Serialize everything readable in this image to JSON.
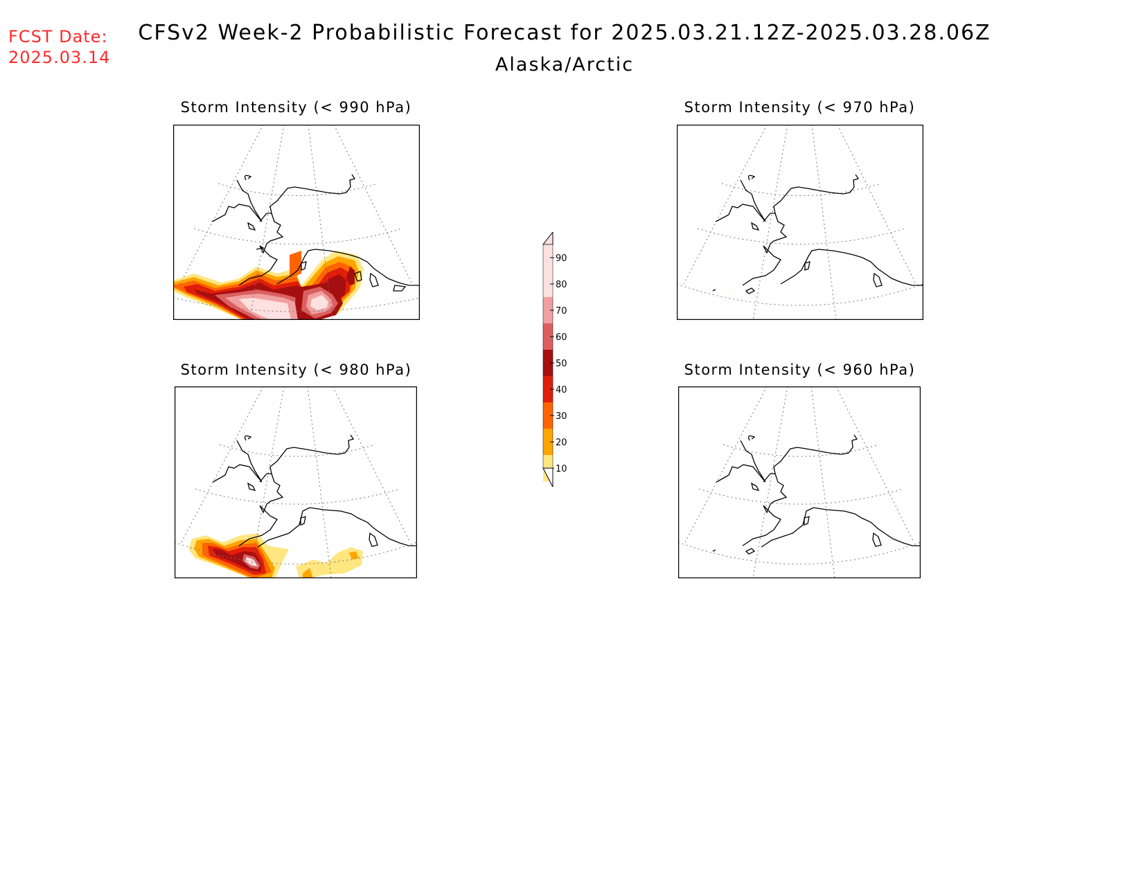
{
  "header": {
    "fcst_label": "FCST Date:",
    "fcst_date": "2025.03.14",
    "title": "CFSv2 Week-2 Probabilistic Forecast for 2025.03.21.12Z-2025.03.28.06Z",
    "subtitle": "Alaska/Arctic"
  },
  "panels": [
    {
      "title": "Storm Intensity (< 990 hPa)",
      "max_probability_percent": 95
    },
    {
      "title": "Storm Intensity (< 970 hPa)",
      "max_probability_percent": 10
    },
    {
      "title": "Storm Intensity (< 980 hPa)",
      "max_probability_percent": 95
    },
    {
      "title": "Storm Intensity (< 960 hPa)",
      "max_probability_percent": 0
    }
  ],
  "colorbar": {
    "levels": [
      {
        "label": "10",
        "color": "#fffac8"
      },
      {
        "label": "20",
        "color": "#ffe680"
      },
      {
        "label": "30",
        "color": "#ffa500"
      },
      {
        "label": "40",
        "color": "#ff6400"
      },
      {
        "label": "50",
        "color": "#e01e0a"
      },
      {
        "label": "60",
        "color": "#a50f0f"
      },
      {
        "label": "70",
        "color": "#dc5f5f"
      },
      {
        "label": "80",
        "color": "#f0a0a0"
      },
      {
        "label": "90",
        "color": "#fde0e0"
      }
    ]
  }
}
